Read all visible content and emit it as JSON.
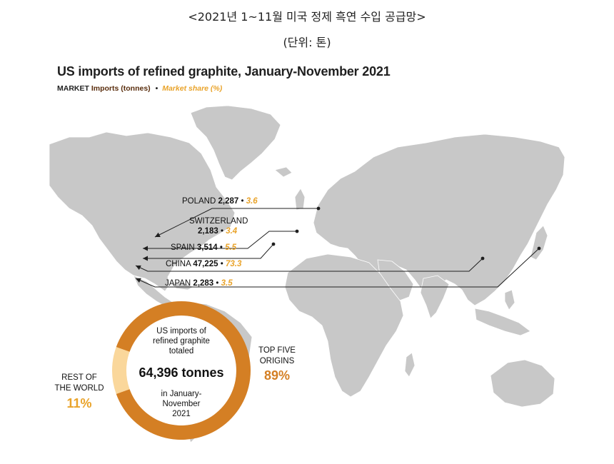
{
  "page": {
    "caption": "<2021년 1~11월 미국 정제 흑연 수입 공급망>",
    "unit": "(단위: 톤)"
  },
  "colors": {
    "land": "#c8c8c8",
    "donut_main": "#d47f24",
    "donut_rest": "#fad79b",
    "share_text": "#e9a32a",
    "imports_text": "#5a2e0e"
  },
  "chart_data": {
    "type": "pie",
    "title": "US imports of refined graphite, January-November 2021",
    "legend": {
      "prefix": "MARKET",
      "imports_label": "Imports (tonnes)",
      "share_label": "Market share (%)"
    },
    "origins": [
      {
        "country": "POLAND",
        "imports": "2,287",
        "share": "3.6"
      },
      {
        "country": "SWITZERLAND",
        "imports": "2,183",
        "share": "3.4"
      },
      {
        "country": "SPAIN",
        "imports": "3,514",
        "share": "5.5"
      },
      {
        "country": "CHINA",
        "imports": "47,225",
        "share": "73.3"
      },
      {
        "country": "JAPAN",
        "imports": "2,283",
        "share": "3.5"
      }
    ],
    "slices": [
      {
        "label": "TOP FIVE ORIGINS",
        "value": 89
      },
      {
        "label": "REST OF THE WORLD",
        "value": 11
      }
    ],
    "donut_center": {
      "line1": "US imports of",
      "line2": "refined graphite",
      "line3": "totaled",
      "total": "64,396 tonnes",
      "line5": "in January-",
      "line6": "November",
      "line7": "2021"
    },
    "top_five": {
      "line1": "TOP FIVE",
      "line2": "ORIGINS",
      "pct": "89%"
    },
    "rest": {
      "line1": "REST OF",
      "line2": "THE WORLD",
      "pct": "11%"
    }
  }
}
